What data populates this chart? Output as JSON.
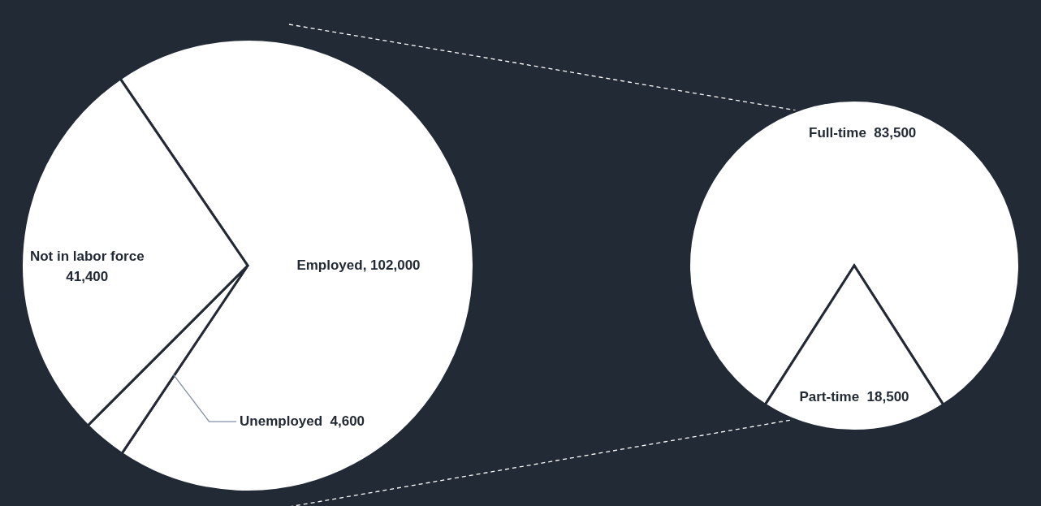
{
  "chart_data": [
    {
      "type": "pie",
      "categories": [
        "Employed",
        "Unemployed",
        "Not in labor force"
      ],
      "values": [
        102000,
        4600,
        41400
      ],
      "colors": [
        "#ffffff",
        "#ffffff",
        "#ffffff"
      ],
      "value_labels": [
        "102,000",
        "4,600",
        "41,400"
      ],
      "legend": false
    },
    {
      "type": "pie",
      "categories": [
        "Full-time",
        "Part-time"
      ],
      "values": [
        83500,
        18500
      ],
      "colors": [
        "#ffffff",
        "#ffffff"
      ],
      "value_labels": [
        "83,500",
        "18,500"
      ],
      "legend": false
    }
  ]
}
